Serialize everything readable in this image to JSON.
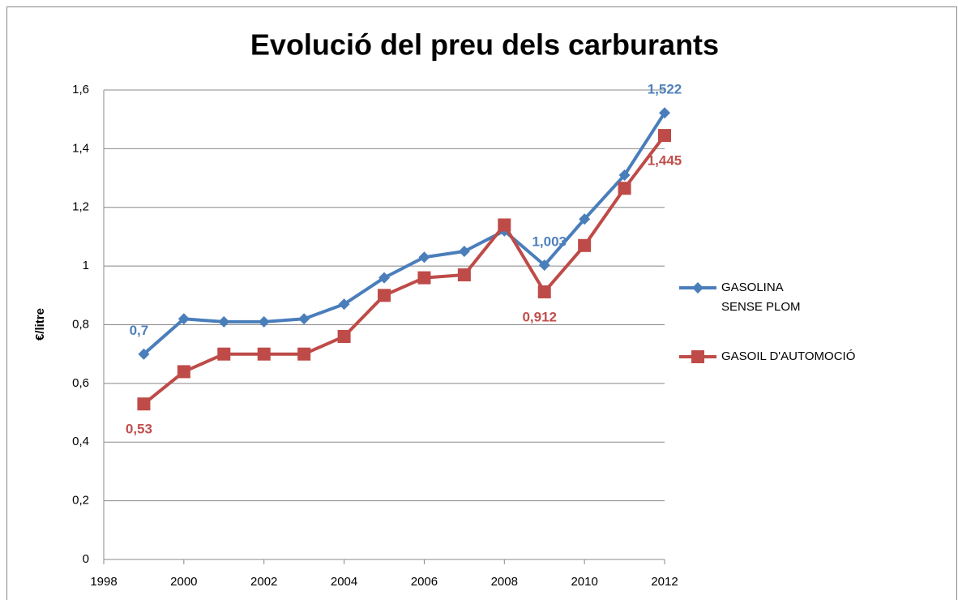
{
  "chart_data": {
    "type": "line",
    "title": "Evolució del preu dels carburants",
    "y_label": "€/litre",
    "x": [
      1999,
      2000,
      2001,
      2002,
      2003,
      2004,
      2005,
      2006,
      2007,
      2008,
      2009,
      2010,
      2011,
      2012
    ],
    "xlim": [
      1998,
      2012
    ],
    "xticks": [
      1998,
      2000,
      2002,
      2004,
      2006,
      2008,
      2010,
      2012
    ],
    "ylim": [
      0,
      1.6
    ],
    "yticks": [
      0,
      {
        "value": 0.2,
        "label": "0,2"
      },
      {
        "value": 0.4,
        "label": "0,4"
      },
      {
        "value": 0.6,
        "label": "0,6"
      },
      {
        "value": 0.8,
        "label": "0,8"
      },
      1,
      {
        "value": 1.2,
        "label": "1,2"
      },
      {
        "value": 1.4,
        "label": "1,4"
      },
      {
        "value": 1.6,
        "label": "1,6"
      }
    ],
    "grid": true,
    "legend": "right",
    "series": [
      {
        "name": "GASOLINA SENSE PLOM",
        "color": "#4a7ebb",
        "label_color": "#4f81bd",
        "marker": "diamond",
        "values": [
          0.7,
          0.82,
          0.81,
          0.81,
          0.82,
          0.87,
          0.96,
          1.03,
          1.05,
          1.12,
          1.003,
          1.16,
          1.31,
          1.522
        ],
        "value_labels": [
          "0,7",
          null,
          null,
          null,
          null,
          null,
          null,
          null,
          null,
          null,
          "1,003",
          null,
          null,
          "1,522"
        ]
      },
      {
        "name": "GASOIL D'AUTOMOCIÓ",
        "color": "#be4b48",
        "label_color": "#c0504d",
        "marker": "square",
        "values": [
          0.53,
          0.64,
          0.7,
          0.7,
          0.7,
          0.76,
          0.9,
          0.96,
          0.97,
          1.14,
          0.912,
          1.07,
          1.265,
          1.445
        ],
        "value_labels": [
          "0,53",
          null,
          null,
          null,
          null,
          null,
          null,
          null,
          null,
          null,
          "0,912",
          null,
          null,
          "1,445"
        ]
      }
    ]
  }
}
